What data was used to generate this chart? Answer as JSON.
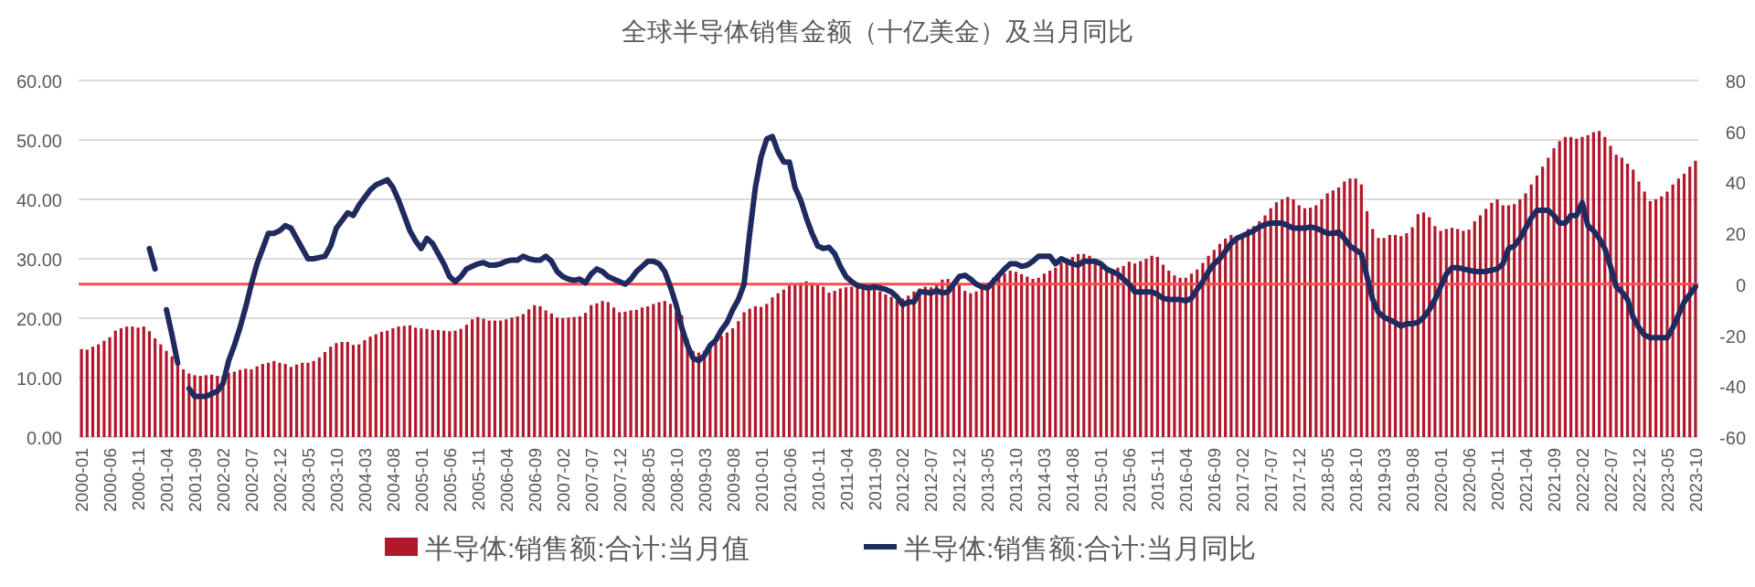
{
  "chart_data": {
    "type": "bar",
    "title": "全球半导体销售金额（十亿美金）及当月同比",
    "categories": [
      "2000-01",
      null,
      null,
      null,
      null,
      "2000-06",
      null,
      null,
      null,
      null,
      "2000-11",
      null,
      null,
      null,
      null,
      "2001-04",
      null,
      null,
      null,
      null,
      "2001-09",
      null,
      null,
      null,
      null,
      "2002-02",
      null,
      null,
      null,
      null,
      "2002-07",
      null,
      null,
      null,
      null,
      "2002-12",
      null,
      null,
      null,
      null,
      "2003-05",
      null,
      null,
      null,
      null,
      "2003-10",
      null,
      null,
      null,
      null,
      "2004-03",
      null,
      null,
      null,
      null,
      "2004-08",
      null,
      null,
      null,
      null,
      "2005-01",
      null,
      null,
      null,
      null,
      "2005-06",
      null,
      null,
      null,
      null,
      "2005-11",
      null,
      null,
      null,
      null,
      "2006-04",
      null,
      null,
      null,
      null,
      "2006-09",
      null,
      null,
      null,
      null,
      "2007-02",
      null,
      null,
      null,
      null,
      "2007-07",
      null,
      null,
      null,
      null,
      "2007-12",
      null,
      null,
      null,
      null,
      "2008-05",
      null,
      null,
      null,
      null,
      "2008-10",
      null,
      null,
      null,
      null,
      "2009-03",
      null,
      null,
      null,
      null,
      "2009-08",
      null,
      null,
      null,
      null,
      "2010-01",
      null,
      null,
      null,
      null,
      "2010-06",
      null,
      null,
      null,
      null,
      "2010-11",
      null,
      null,
      null,
      null,
      "2011-04",
      null,
      null,
      null,
      null,
      "2011-09",
      null,
      null,
      null,
      null,
      "2012-02",
      null,
      null,
      null,
      null,
      "2012-07",
      null,
      null,
      null,
      null,
      "2012-12",
      null,
      null,
      null,
      null,
      "2013-05",
      null,
      null,
      null,
      null,
      "2013-10",
      null,
      null,
      null,
      null,
      "2014-03",
      null,
      null,
      null,
      null,
      "2014-08",
      null,
      null,
      null,
      null,
      "2015-01",
      null,
      null,
      null,
      null,
      "2015-06",
      null,
      null,
      null,
      null,
      "2015-11",
      null,
      null,
      null,
      null,
      "2016-04",
      null,
      null,
      null,
      null,
      "2016-09",
      null,
      null,
      null,
      null,
      "2017-02",
      null,
      null,
      null,
      null,
      "2017-07",
      null,
      null,
      null,
      null,
      "2017-12",
      null,
      null,
      null,
      null,
      "2018-05",
      null,
      null,
      null,
      null,
      "2018-10",
      null,
      null,
      null,
      null,
      "2019-03",
      null,
      null,
      null,
      null,
      "2019-08",
      null,
      null,
      null,
      null,
      "2020-01",
      null,
      null,
      null,
      null,
      "2020-06",
      null,
      null,
      null,
      null,
      "2020-11",
      null,
      null,
      null,
      null,
      "2021-04",
      null,
      null,
      null,
      null,
      "2021-09",
      null,
      null,
      null,
      null,
      "2022-02",
      null,
      null,
      null,
      null,
      "2022-07",
      null,
      null,
      null,
      null,
      "2022-12",
      null,
      null,
      null,
      null,
      "2023-05",
      null,
      null,
      null,
      null,
      "2023-10"
    ],
    "series": [
      {
        "name": "半导体:销售额:合计:当月值",
        "color": "#b2182b",
        "values": [
          14.8,
          14.7,
          15.2,
          15.6,
          16.2,
          16.8,
          17.9,
          18.3,
          18.6,
          18.6,
          18.4,
          18.6,
          17.8,
          16.6,
          15.6,
          14.5,
          13.6,
          12.6,
          11.4,
          10.7,
          10.4,
          10.3,
          10.4,
          10.5,
          10.3,
          10.2,
          10.8,
          11.0,
          11.3,
          11.5,
          11.4,
          11.9,
          12.3,
          12.5,
          12.8,
          12.5,
          12.3,
          11.8,
          12.2,
          12.5,
          12.5,
          12.8,
          13.4,
          14.3,
          15.2,
          15.8,
          16.0,
          16.0,
          15.5,
          15.6,
          16.3,
          16.9,
          17.3,
          17.7,
          17.9,
          18.3,
          18.6,
          18.7,
          18.8,
          18.4,
          18.3,
          18.2,
          18.0,
          18.0,
          17.9,
          17.8,
          17.9,
          18.2,
          18.9,
          19.8,
          20.2,
          19.9,
          19.6,
          19.6,
          19.6,
          19.8,
          20.1,
          20.3,
          20.7,
          21.5,
          22.2,
          22.0,
          21.3,
          20.8,
          20.1,
          20.0,
          20.1,
          20.2,
          20.3,
          20.9,
          22.2,
          22.5,
          22.9,
          22.7,
          21.8,
          21.0,
          21.1,
          21.3,
          21.4,
          21.8,
          22.0,
          22.4,
          22.7,
          22.9,
          22.4,
          21.0,
          20.5,
          16.5,
          14.5,
          14.2,
          14.5,
          15.5,
          16.5,
          17.0,
          17.6,
          18.3,
          19.5,
          21.0,
          21.6,
          22.0,
          21.9,
          22.4,
          23.5,
          24.2,
          24.8,
          25.5,
          25.8,
          26.0,
          26.2,
          26.0,
          25.7,
          25.3,
          24.3,
          24.6,
          25.0,
          25.2,
          25.3,
          25.7,
          25.5,
          25.0,
          24.9,
          24.5,
          24.0,
          23.6,
          23.0,
          23.3,
          23.8,
          24.5,
          25.0,
          25.3,
          25.2,
          25.8,
          26.5,
          26.6,
          26.2,
          25.8,
          24.6,
          24.2,
          24.5,
          25.5,
          26.0,
          26.8,
          27.0,
          27.5,
          28.0,
          27.8,
          27.4,
          27.0,
          26.6,
          26.8,
          27.5,
          28.0,
          28.5,
          29.3,
          29.8,
          30.3,
          30.8,
          30.8,
          30.5,
          30.0,
          28.7,
          28.5,
          28.2,
          28.5,
          28.8,
          29.5,
          29.2,
          29.6,
          30.0,
          30.5,
          30.3,
          29.0,
          28.0,
          27.2,
          26.8,
          26.8,
          27.5,
          28.2,
          29.3,
          30.5,
          31.5,
          32.5,
          33.4,
          34.0,
          33.8,
          34.0,
          35.0,
          35.5,
          36.3,
          37.3,
          38.5,
          39.5,
          40.0,
          40.4,
          40.0,
          39.0,
          38.5,
          38.6,
          39.0,
          40.0,
          41.0,
          41.5,
          42.0,
          43.0,
          43.5,
          43.5,
          42.5,
          38.0,
          35.0,
          33.5,
          33.5,
          34.0,
          34.0,
          33.8,
          34.3,
          35.3,
          37.5,
          37.8,
          37.0,
          35.5,
          34.7,
          35.0,
          35.2,
          35.0,
          34.7,
          34.9,
          36.3,
          37.3,
          38.4,
          39.4,
          40.0,
          39.0,
          39.0,
          39.2,
          40.0,
          41.0,
          42.5,
          44.0,
          45.5,
          47.0,
          48.6,
          49.8,
          50.5,
          50.5,
          50.2,
          50.5,
          50.8,
          51.3,
          51.5,
          50.5,
          49.0,
          47.5,
          47.0,
          46.0,
          45.0,
          43.0,
          41.3,
          39.7,
          40.0,
          40.5,
          41.3,
          42.5,
          43.5,
          44.3,
          45.5,
          46.5
        ]
      },
      {
        "name": "半导体:销售额:合计:当月同比",
        "type": "line",
        "axis": "y2",
        "color": "#1f2b5e",
        "values": [
          null,
          null,
          null,
          null,
          null,
          null,
          null,
          null,
          null,
          null,
          null,
          null,
          14,
          6,
          null,
          -10,
          -20,
          -31,
          null,
          -41,
          -44,
          -44,
          -44,
          -43,
          -42,
          -39,
          -30,
          -24,
          -17,
          -9,
          0,
          8,
          14,
          20,
          20,
          21,
          23,
          22,
          18,
          14,
          10,
          10,
          10.5,
          11,
          15,
          22,
          25,
          28,
          27,
          31,
          34,
          37,
          39,
          40,
          41,
          38,
          33,
          27,
          21,
          17,
          14,
          18,
          16,
          12,
          8,
          3,
          1,
          3,
          6,
          7,
          8,
          8.5,
          7.5,
          7.5,
          8,
          9,
          9.5,
          9.5,
          11,
          10,
          9.5,
          9.5,
          11,
          9,
          5,
          3,
          2,
          1.5,
          2,
          0.5,
          4,
          6,
          5,
          3,
          2,
          1,
          0,
          2,
          5,
          7,
          9,
          9,
          8,
          5,
          -1,
          -8,
          -17,
          -24,
          -29,
          -30,
          -28,
          -24,
          -22,
          -18,
          -15,
          -10,
          -6,
          0,
          20,
          38,
          50,
          57,
          58,
          52,
          48,
          48,
          38,
          33,
          26,
          20,
          15,
          14,
          14.5,
          12,
          7,
          3,
          1,
          -0.5,
          -1,
          -1.5,
          -1,
          -1.5,
          -2,
          -3,
          -5,
          -8,
          -7,
          -7,
          -3,
          -3,
          -3.5,
          -2.5,
          -3.5,
          -3,
          0,
          3,
          3.5,
          2,
          0,
          -1,
          -1.5,
          1,
          3.5,
          6,
          8,
          8,
          7,
          7.5,
          9,
          11,
          11,
          11,
          8,
          10,
          9,
          8,
          7.5,
          9,
          9,
          9,
          8,
          6,
          5,
          4,
          2,
          0,
          -3,
          -3,
          -3,
          -3,
          -4,
          -5.5,
          -6,
          -6,
          -6,
          -6.5,
          -5.5,
          -2,
          1,
          5,
          8,
          10,
          13,
          16,
          18,
          19,
          20,
          21,
          22.5,
          23.5,
          24,
          24,
          24,
          23,
          22,
          22,
          22,
          22.5,
          22,
          21,
          20,
          20,
          20.5,
          18,
          15,
          13.5,
          12,
          3,
          -6,
          -11,
          -13,
          -14,
          -15,
          -16.5,
          -15.5,
          -15.5,
          -15,
          -13,
          -10,
          -6,
          -1,
          4,
          6.5,
          6.5,
          6,
          5.5,
          5,
          5,
          5,
          5.5,
          6,
          8,
          14,
          15,
          18,
          22,
          26,
          29,
          29,
          29,
          27,
          24,
          24,
          27,
          27,
          32,
          23,
          21,
          18,
          14,
          7,
          -1,
          -3,
          -6,
          -13,
          -17,
          -20,
          -21,
          -21,
          -21,
          -21,
          -17,
          -12,
          -7,
          -4,
          -1
        ]
      }
    ],
    "ylim": [
      0,
      60
    ],
    "yticks": [
      {
        "value": 0,
        "label": "0.00"
      },
      {
        "value": 10,
        "label": "10.00"
      },
      {
        "value": 20,
        "label": "20.00"
      },
      {
        "value": 30,
        "label": "30.00"
      },
      {
        "value": 40,
        "label": "40.00"
      },
      {
        "value": 50,
        "label": "50.00"
      },
      {
        "value": 60,
        "label": "60.00"
      }
    ],
    "y2lim": [
      -60,
      80
    ],
    "y2ticks": [
      -60,
      -40,
      -20,
      0,
      20,
      40,
      60,
      80
    ],
    "ref_lines": [
      {
        "axis": "y2",
        "value": 0,
        "color": "#ff4d4d"
      }
    ],
    "grid": "y",
    "legend": "bottom"
  }
}
